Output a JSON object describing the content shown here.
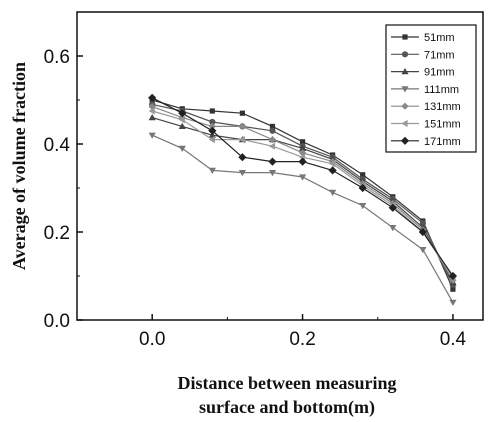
{
  "chart_data": {
    "type": "line",
    "xlabel_lines": [
      "Distance between measuring",
      "surface and bottom(m)"
    ],
    "ylabel": "Average of volume fraction",
    "xlim": [
      -0.1,
      0.44
    ],
    "ylim": [
      0.0,
      0.7
    ],
    "xticks": [
      0.0,
      0.2,
      0.4
    ],
    "xtick_labels": [
      "0.0",
      "0.2",
      "0.4"
    ],
    "yticks": [
      0.0,
      0.2,
      0.4,
      0.6
    ],
    "ytick_labels": [
      "0.0",
      "0.2",
      "0.4",
      "0.6"
    ],
    "grid": false,
    "legend_position": "top-right",
    "x": [
      0.0,
      0.04,
      0.08,
      0.12,
      0.16,
      0.2,
      0.24,
      0.28,
      0.32,
      0.36,
      0.4
    ],
    "series": [
      {
        "name": "51mm",
        "marker": "square",
        "values": [
          0.5,
          0.48,
          0.475,
          0.47,
          0.44,
          0.405,
          0.375,
          0.33,
          0.28,
          0.225,
          0.07
        ]
      },
      {
        "name": "71mm",
        "marker": "circle",
        "values": [
          0.49,
          0.475,
          0.45,
          0.44,
          0.43,
          0.395,
          0.37,
          0.32,
          0.275,
          0.22,
          0.08
        ]
      },
      {
        "name": "91mm",
        "marker": "triangle-up",
        "values": [
          0.46,
          0.44,
          0.42,
          0.41,
          0.41,
          0.39,
          0.365,
          0.315,
          0.27,
          0.21,
          0.085
        ]
      },
      {
        "name": "111mm",
        "marker": "triangle-down",
        "values": [
          0.42,
          0.39,
          0.34,
          0.335,
          0.335,
          0.325,
          0.29,
          0.26,
          0.21,
          0.16,
          0.04
        ]
      },
      {
        "name": "131mm",
        "marker": "diamond",
        "values": [
          0.485,
          0.46,
          0.44,
          0.44,
          0.41,
          0.38,
          0.36,
          0.31,
          0.265,
          0.205,
          0.09
        ]
      },
      {
        "name": "151mm",
        "marker": "triangle-left",
        "values": [
          0.475,
          0.455,
          0.41,
          0.41,
          0.395,
          0.37,
          0.355,
          0.305,
          0.26,
          0.2,
          0.095
        ]
      },
      {
        "name": "171mm",
        "marker": "diamond-fill",
        "values": [
          0.505,
          0.47,
          0.43,
          0.37,
          0.36,
          0.36,
          0.34,
          0.3,
          0.255,
          0.2,
          0.1
        ]
      }
    ]
  }
}
